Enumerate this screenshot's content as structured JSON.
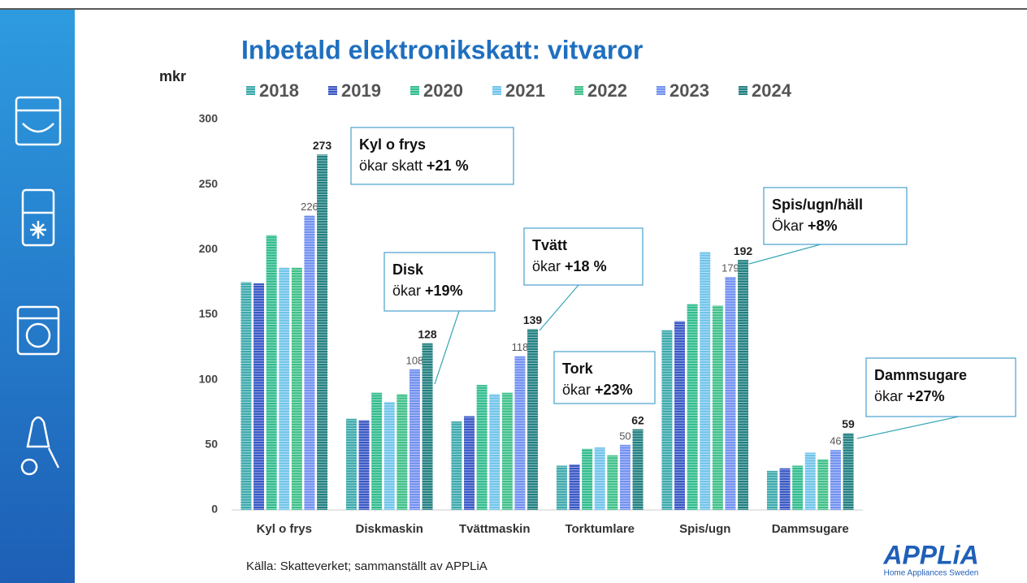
{
  "chart_data": {
    "type": "bar",
    "title": "Inbetald elektronikskatt: vitvaror",
    "y_label": "mkr",
    "categories": [
      "Kyl o frys",
      "Diskmaskin",
      "Tvättmaskin",
      "Torktumlare",
      "Spis/ugn",
      "Dammsugare"
    ],
    "series": [
      {
        "name": "2018",
        "color": "#39a8ab",
        "values": [
          175,
          70,
          68,
          34,
          138,
          30
        ]
      },
      {
        "name": "2019",
        "color": "#3654c4",
        "values": [
          174,
          69,
          72,
          35,
          145,
          32
        ]
      },
      {
        "name": "2020",
        "color": "#2dbb8c",
        "values": [
          211,
          90,
          96,
          47,
          158,
          34
        ]
      },
      {
        "name": "2021",
        "color": "#6ec3ea",
        "values": [
          186,
          83,
          89,
          48,
          198,
          44
        ]
      },
      {
        "name": "2022",
        "color": "#3cbf87",
        "values": [
          186,
          89,
          90,
          42,
          157,
          39
        ]
      },
      {
        "name": "2023",
        "color": "#6f8ef0",
        "values": [
          226,
          108,
          118,
          50,
          179,
          46
        ],
        "labeled": true
      },
      {
        "name": "2024",
        "color": "#1e7d7e",
        "values": [
          273,
          128,
          139,
          62,
          192,
          59
        ],
        "labeled": true
      }
    ],
    "ylim": [
      0,
      300
    ],
    "yticks": [
      0,
      50,
      100,
      150,
      200,
      250,
      300
    ],
    "grid": false,
    "annotations": [
      {
        "lines": [
          [
            {
              "text": "Kyl o frys",
              "bold": true
            }
          ],
          [
            {
              "text": "ökar skatt "
            },
            {
              "text": "+21 %",
              "bold": true
            }
          ]
        ]
      },
      {
        "lines": [
          [
            {
              "text": "Disk",
              "bold": true
            }
          ],
          [
            {
              "text": "ökar "
            },
            {
              "text": "+19%",
              "bold": true
            }
          ]
        ]
      },
      {
        "lines": [
          [
            {
              "text": "Tvätt",
              "bold": true
            }
          ],
          [
            {
              "text": "ökar "
            },
            {
              "text": "+18 %",
              "bold": true
            }
          ]
        ]
      },
      {
        "lines": [
          [
            {
              "text": "Tork",
              "bold": true
            }
          ],
          [
            {
              "text": "ökar "
            },
            {
              "text": "+23%",
              "bold": true
            }
          ]
        ]
      },
      {
        "lines": [
          [
            {
              "text": "Spis/ugn/häll",
              "bold": true
            }
          ],
          [
            {
              "text": "Ökar "
            },
            {
              "text": "+8%",
              "bold": true
            }
          ]
        ]
      },
      {
        "lines": [
          [
            {
              "text": "Dammsugare",
              "bold": true
            }
          ],
          [
            {
              "text": "ökar "
            },
            {
              "text": "+27%",
              "bold": true
            }
          ]
        ]
      }
    ]
  },
  "source": "Källa: Skatteverket; sammanställt av APPLiA",
  "logo": {
    "name": "APPLiA",
    "tagline": "Home Appliances Sweden"
  }
}
